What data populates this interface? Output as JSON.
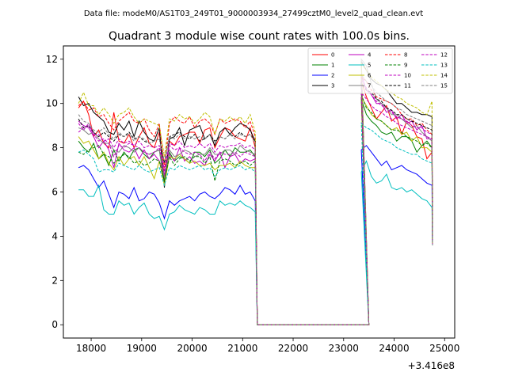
{
  "suptitle": "Data file: modeM0/AS1T03_249T01_9000003934_27499cztM0_level2_quad_clean.evt",
  "chart_data": {
    "type": "line",
    "title": "Quadrant 3 module wise count rates with 100.0s bins.",
    "xlabel": "",
    "ylabel": "",
    "x_offset_label": "+3.416e8",
    "xlim": [
      17450,
      25200
    ],
    "ylim": [
      -0.6,
      12.6
    ],
    "x_ticks": [
      18000,
      19000,
      20000,
      21000,
      22000,
      23000,
      24000,
      25000
    ],
    "x_tick_labels": [
      "18000",
      "19000",
      "20000",
      "21000",
      "22000",
      "23000",
      "24000",
      "25000"
    ],
    "y_ticks": [
      0,
      2,
      4,
      6,
      8,
      10,
      12
    ],
    "y_tick_labels": [
      "0",
      "2",
      "4",
      "6",
      "8",
      "10",
      "12"
    ],
    "legend_location": "upper right",
    "x_start": 17750,
    "bin": 100,
    "gap_start": 21390,
    "gap_end": 23500,
    "x_end": 24750,
    "series": [
      {
        "name": "0",
        "color": "#ff0000",
        "dash": "solid",
        "v1": [
          9.8,
          10.1,
          9.5,
          8.5,
          8.8,
          8.2,
          8.0,
          9.6,
          8.3,
          8.2,
          8.6,
          8.0,
          8.5,
          8.9,
          8.2,
          8.0,
          8.7,
          6.6,
          8.3,
          8.1,
          8.5,
          8.6,
          8.7,
          8.7,
          8.2,
          8.8,
          8.9,
          8.0,
          8.5,
          8.9,
          8.8,
          8.5,
          8.4,
          8.3,
          8.9,
          8.0
        ],
        "v2": [
          11.0,
          10.3,
          9.8,
          9.3,
          9.6,
          9.9,
          9.2,
          9.4,
          8.6,
          9.2,
          9.0,
          8.5,
          8.4,
          7.5,
          7.8
        ]
      },
      {
        "name": "1",
        "color": "#008000",
        "dash": "solid",
        "v1": [
          8.3,
          8.0,
          7.8,
          8.2,
          7.5,
          7.7,
          7.2,
          7.9,
          7.4,
          7.8,
          7.5,
          7.9,
          8.0,
          7.7,
          7.5,
          7.8,
          7.9,
          6.4,
          7.8,
          7.4,
          7.6,
          7.5,
          7.3,
          7.8,
          7.8,
          7.6,
          7.9,
          7.3,
          7.5,
          7.9,
          7.6,
          8.0,
          7.8,
          7.8,
          7.9,
          7.6
        ],
        "v2": [
          10.2,
          9.5,
          9.2,
          9.0,
          8.7,
          8.6,
          8.7,
          8.3,
          8.5,
          8.5,
          8.3,
          7.8,
          8.1,
          8.3,
          8.0
        ]
      },
      {
        "name": "2",
        "color": "#0000ff",
        "dash": "solid",
        "v1": [
          7.1,
          7.2,
          7.0,
          6.6,
          6.2,
          6.5,
          5.9,
          5.3,
          6.0,
          5.9,
          5.7,
          6.2,
          5.6,
          5.7,
          6.0,
          5.9,
          5.5,
          4.8,
          5.6,
          5.4,
          5.6,
          5.7,
          5.8,
          5.6,
          5.9,
          6.0,
          5.8,
          5.7,
          5.9,
          6.2,
          6.1,
          5.9,
          6.3,
          5.9,
          6.0,
          5.6
        ],
        "v2": [
          7.9,
          8.1,
          7.8,
          7.5,
          7.2,
          7.4,
          7.0,
          7.1,
          7.2,
          7.0,
          6.9,
          6.8,
          6.6,
          6.4,
          6.3
        ]
      },
      {
        "name": "3",
        "color": "#000000",
        "dash": "solid",
        "v1": [
          10.3,
          9.9,
          10.0,
          9.6,
          9.4,
          9.2,
          8.7,
          8.6,
          9.1,
          8.8,
          9.2,
          8.5,
          9.2,
          8.7,
          8.4,
          8.3,
          8.9,
          6.2,
          8.4,
          8.5,
          8.9,
          8.1,
          8.8,
          8.9,
          9.0,
          8.4,
          8.6,
          8.1,
          8.7,
          8.9,
          8.6,
          8.9,
          9.1,
          9.0,
          8.8,
          8.3
        ],
        "v2": [
          11.9,
          11.5,
          11.1,
          10.9,
          10.8,
          10.6,
          10.3,
          10.0,
          10.0,
          9.8,
          9.6,
          9.6,
          9.5,
          9.5,
          9.4
        ]
      },
      {
        "name": "4",
        "color": "#bf00bf",
        "dash": "solid",
        "v1": [
          9.2,
          9.0,
          8.9,
          8.5,
          8.0,
          8.3,
          7.9,
          7.1,
          8.2,
          7.9,
          7.8,
          8.0,
          7.5,
          7.9,
          7.5,
          7.7,
          7.4,
          6.8,
          7.7,
          7.4,
          8.0,
          7.4,
          7.6,
          7.3,
          7.4,
          7.2,
          7.7,
          7.4,
          7.8,
          7.1,
          7.6,
          7.7,
          7.3,
          7.5,
          7.4,
          7.5
        ],
        "v2": [
          11.3,
          10.6,
          10.4,
          10.0,
          10.0,
          9.6,
          9.7,
          9.3,
          9.5,
          9.1,
          9.2,
          8.8,
          9.0,
          8.4,
          8.4
        ]
      },
      {
        "name": "5",
        "color": "#00bfbf",
        "dash": "solid",
        "v1": [
          6.1,
          6.1,
          5.8,
          5.8,
          6.3,
          5.2,
          5.0,
          5.0,
          5.6,
          5.4,
          5.5,
          5.0,
          5.3,
          5.5,
          5.0,
          4.8,
          4.9,
          4.3,
          5.0,
          5.1,
          5.4,
          5.2,
          5.1,
          5.0,
          5.3,
          5.2,
          5.0,
          5.0,
          5.6,
          5.4,
          5.5,
          5.4,
          5.6,
          5.4,
          5.3,
          5.1
        ],
        "v2": [
          6.9,
          7.4,
          6.7,
          6.4,
          6.5,
          6.8,
          6.2,
          6.1,
          6.2,
          6.0,
          6.1,
          5.9,
          5.7,
          5.6,
          5.3
        ]
      },
      {
        "name": "6",
        "color": "#bfbf00",
        "dash": "solid",
        "v1": [
          8.5,
          8.2,
          8.3,
          7.9,
          7.5,
          7.8,
          7.3,
          7.0,
          7.6,
          7.2,
          7.5,
          7.6,
          7.2,
          7.6,
          7.1,
          6.6,
          7.4,
          6.3,
          7.6,
          7.5,
          7.7,
          7.5,
          7.3,
          7.4,
          7.2,
          7.2,
          7.3,
          7.0,
          7.2,
          7.2,
          7.3,
          7.1,
          7.4,
          7.2,
          7.1,
          7.1
        ],
        "v2": [
          10.3,
          9.9,
          9.5,
          9.3,
          9.2,
          9.0,
          8.8,
          8.9,
          8.6,
          8.7,
          8.3,
          8.5,
          8.0,
          8.0,
          7.8
        ]
      },
      {
        "name": "7",
        "color": "#808080",
        "dash": "solid",
        "v1": [
          8.9,
          8.8,
          8.6,
          8.7,
          8.4,
          8.2,
          8.2,
          7.9,
          7.8,
          8.1,
          8.0,
          7.8,
          8.0,
          7.8,
          7.7,
          7.8,
          7.9,
          6.6,
          7.9,
          7.6,
          7.7,
          7.9,
          7.8,
          7.6,
          7.7,
          7.7,
          8.0,
          7.7,
          7.7,
          7.9,
          7.9,
          7.7,
          8.1,
          7.9,
          7.8,
          7.7
        ],
        "v2": [
          12.0,
          11.7,
          10.9,
          10.2,
          10.0,
          9.8,
          9.5,
          9.5,
          9.3,
          9.1,
          8.9,
          9.0,
          8.7,
          8.5,
          8.3
        ]
      },
      {
        "name": "8",
        "color": "#ff0000",
        "dash": "dashed",
        "v1": [
          9.9,
          10.1,
          9.7,
          9.8,
          9.4,
          9.5,
          9.1,
          8.8,
          9.2,
          9.4,
          9.6,
          9.2,
          9.1,
          9.3,
          8.8,
          8.5,
          9.1,
          7.1,
          9.1,
          9.4,
          9.2,
          9.1,
          9.4,
          8.9,
          9.2,
          9.3,
          9.1,
          8.6,
          9.3,
          9.1,
          9.2,
          9.3,
          9.2,
          8.9,
          9.2,
          8.5
        ],
        "v2": [
          11.2,
          11.0,
          10.6,
          10.3,
          10.2,
          10.1,
          10.0,
          9.8,
          9.5,
          9.3,
          9.3,
          9.0,
          9.1,
          8.8,
          8.6
        ]
      },
      {
        "name": "9",
        "color": "#008000",
        "dash": "dashed",
        "v1": [
          7.8,
          7.7,
          7.9,
          8.0,
          8.1,
          7.7,
          7.6,
          7.3,
          7.5,
          7.7,
          7.6,
          7.3,
          7.4,
          7.2,
          7.3,
          7.5,
          7.4,
          6.5,
          7.6,
          7.2,
          7.5,
          7.6,
          7.4,
          7.6,
          7.6,
          7.3,
          7.6,
          6.5,
          7.4,
          7.5,
          7.4,
          7.2,
          7.3,
          7.4,
          7.2,
          7.4
        ],
        "v2": [
          10.4,
          9.8,
          9.6,
          9.3,
          9.2,
          9.0,
          8.8,
          8.8,
          8.7,
          8.5,
          8.4,
          8.3,
          8.1,
          8.2,
          8.0
        ]
      },
      {
        "name": "10",
        "color": "#bf00bf",
        "dash": "dashed",
        "v1": [
          8.7,
          8.9,
          9.0,
          8.6,
          8.3,
          8.4,
          8.2,
          7.6,
          8.1,
          8.0,
          8.2,
          8.1,
          8.0,
          7.8,
          7.7,
          7.8,
          8.0,
          6.9,
          8.1,
          7.9,
          8.0,
          7.8,
          7.7,
          7.8,
          7.7,
          7.4,
          7.8,
          7.5,
          7.8,
          7.7,
          7.7,
          7.8,
          7.6,
          7.8,
          7.7,
          7.6
        ],
        "v2": [
          11.1,
          10.7,
          10.4,
          10.1,
          9.9,
          9.8,
          9.6,
          9.4,
          9.3,
          9.2,
          9.0,
          8.9,
          8.9,
          8.7,
          8.6
        ]
      },
      {
        "name": "11",
        "color": "#000000",
        "dash": "dashed",
        "v1": [
          9.3,
          8.9,
          9.0,
          8.7,
          8.5,
          8.7,
          8.5,
          8.3,
          8.6,
          8.5,
          8.7,
          8.4,
          8.5,
          8.3,
          8.2,
          8.3,
          8.4,
          7.3,
          8.5,
          8.6,
          8.7,
          8.5,
          8.4,
          8.6,
          8.3,
          8.4,
          8.6,
          8.3,
          8.5,
          8.4,
          8.6,
          8.5,
          8.7,
          8.5,
          8.6,
          8.3
        ],
        "v2": [
          10.9,
          10.6,
          10.5,
          10.2,
          10.1,
          9.8,
          9.7,
          9.5,
          9.5,
          9.3,
          9.2,
          9.1,
          9.0,
          8.9,
          8.8
        ]
      },
      {
        "name": "12",
        "color": "#bf00bf",
        "dash": "dashed",
        "v1": [
          9.1,
          8.8,
          9.1,
          8.6,
          8.6,
          8.3,
          8.4,
          8.0,
          8.4,
          8.2,
          8.3,
          8.1,
          8.3,
          8.0,
          8.1,
          8.0,
          8.1,
          7.0,
          8.2,
          8.1,
          8.3,
          8.0,
          8.1,
          8.0,
          8.2,
          8.0,
          8.2,
          7.8,
          8.1,
          8.0,
          8.1,
          8.1,
          8.2,
          8.0,
          8.1,
          7.9
        ],
        "v2": [
          10.5,
          10.2,
          9.9,
          9.7,
          9.6,
          9.4,
          9.3,
          9.1,
          9.0,
          8.9,
          8.8,
          8.7,
          8.6,
          8.5,
          8.4
        ]
      },
      {
        "name": "13",
        "color": "#00bfbf",
        "dash": "dashed",
        "v1": [
          7.8,
          7.9,
          7.7,
          7.5,
          6.9,
          7.0,
          7.0,
          6.9,
          7.3,
          7.2,
          7.1,
          7.0,
          7.2,
          7.0,
          6.9,
          7.0,
          7.1,
          6.3,
          7.1,
          7.0,
          7.2,
          7.1,
          7.0,
          7.1,
          7.2,
          7.0,
          7.1,
          6.7,
          7.0,
          7.1,
          7.0,
          7.1,
          7.2,
          7.0,
          7.1,
          6.9
        ],
        "v2": [
          9.1,
          8.9,
          8.8,
          8.6,
          8.4,
          8.3,
          8.2,
          8.0,
          7.9,
          7.8,
          7.7,
          7.7,
          7.5,
          7.4,
          7.3
        ]
      },
      {
        "name": "14",
        "color": "#bfbf00",
        "dash": "dashed",
        "v1": [
          10.0,
          10.5,
          9.9,
          9.9,
          9.5,
          9.8,
          9.5,
          9.1,
          9.5,
          9.6,
          9.8,
          9.4,
          9.1,
          9.3,
          9.2,
          9.1,
          9.0,
          7.6,
          9.3,
          9.2,
          9.5,
          9.3,
          9.4,
          9.1,
          9.3,
          9.6,
          9.4,
          8.6,
          9.3,
          9.2,
          9.4,
          9.2,
          9.4,
          9.1,
          9.5,
          8.7
        ],
        "v2": [
          11.8,
          11.5,
          11.2,
          11.0,
          10.8,
          10.6,
          10.5,
          10.3,
          10.2,
          10.0,
          9.9,
          9.8,
          9.6,
          9.5,
          10.1
        ]
      },
      {
        "name": "15",
        "color": "#808080",
        "dash": "dashed",
        "v1": [
          9.5,
          9.2,
          9.1,
          8.8,
          8.7,
          8.9,
          8.6,
          8.4,
          8.7,
          8.5,
          8.6,
          8.3,
          8.5,
          8.4,
          8.2,
          8.3,
          8.4,
          7.4,
          8.5,
          8.4,
          8.6,
          8.4,
          8.5,
          8.4,
          8.5,
          8.4,
          8.6,
          8.2,
          8.5,
          8.4,
          8.6,
          8.4,
          8.6,
          8.5,
          8.6,
          8.2
        ],
        "v2": [
          11.3,
          11.0,
          10.8,
          10.5,
          10.3,
          10.1,
          10.0,
          9.8,
          9.7,
          9.5,
          9.4,
          9.3,
          9.2,
          9.1,
          9.0
        ]
      }
    ]
  }
}
